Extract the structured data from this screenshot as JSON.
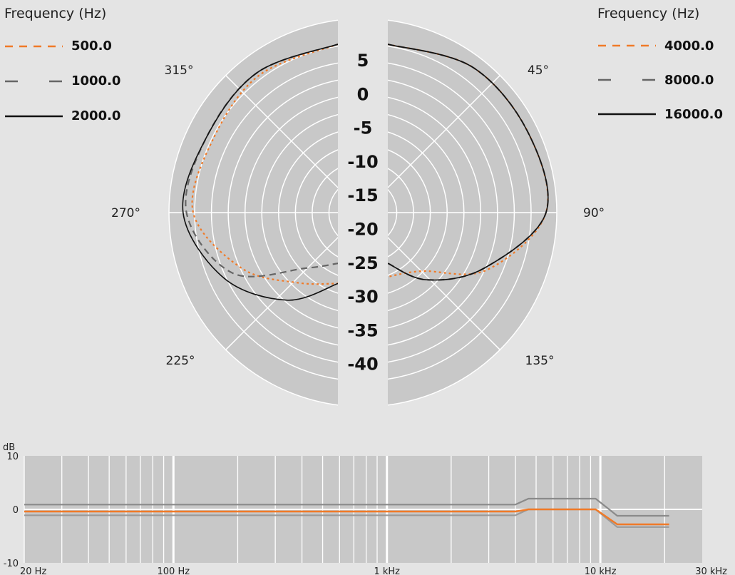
{
  "chart_data": [
    {
      "type": "polar",
      "radial_ticks": [
        "5",
        "0",
        "-5",
        "-10",
        "-15",
        "-20",
        "-25",
        "-30",
        "-35",
        "-40"
      ],
      "radial_range": [
        -40,
        5
      ],
      "angle_labels": [
        "45°",
        "90°",
        "135°",
        "225°",
        "270°",
        "315°"
      ],
      "legends": [
        {
          "title": "Frequency (Hz)",
          "placement": "top-left",
          "entries": [
            {
              "label": "500.0",
              "color": "#f07a28",
              "style": "dotted"
            },
            {
              "label": "1000.0",
              "color": "#666666",
              "style": "dashed"
            },
            {
              "label": "2000.0",
              "color": "#111111",
              "style": "solid"
            }
          ]
        },
        {
          "title": "Frequency (Hz)",
          "placement": "top-right",
          "entries": [
            {
              "label": "4000.0",
              "color": "#f07a28",
              "style": "dotted"
            },
            {
              "label": "8000.0",
              "color": "#666666",
              "style": "dashed"
            },
            {
              "label": "16000.0",
              "color": "#111111",
              "style": "solid"
            }
          ]
        }
      ],
      "series": [
        {
          "name": "500.0",
          "side": "left",
          "angles": [
            0,
            30,
            60,
            90,
            120,
            150,
            180
          ],
          "values": [
            5,
            2,
            -2,
            -2,
            -12,
            -21,
            -24
          ]
        },
        {
          "name": "1000.0",
          "side": "left",
          "angles": [
            0,
            30,
            60,
            90,
            120,
            150,
            180
          ],
          "values": [
            5,
            3,
            0,
            0,
            -9,
            -26,
            -30
          ]
        },
        {
          "name": "2000.0",
          "side": "left",
          "angles": [
            0,
            30,
            60,
            90,
            120,
            150,
            180
          ],
          "values": [
            5,
            3,
            0,
            1,
            -6,
            -15,
            -24
          ]
        },
        {
          "name": "4000.0",
          "side": "right",
          "angles": [
            0,
            30,
            60,
            90,
            120,
            150,
            180
          ],
          "values": [
            5,
            5,
            3,
            2,
            -11,
            -25,
            -26
          ]
        },
        {
          "name": "8000.0",
          "side": "right",
          "angles": [
            0,
            30,
            60,
            90,
            120,
            150,
            180
          ],
          "values": [
            5,
            5,
            3,
            2,
            -12,
            -22,
            -30
          ]
        },
        {
          "name": "16000.0",
          "side": "right",
          "angles": [
            0,
            30,
            60,
            90,
            120,
            150,
            180
          ],
          "values": [
            5,
            5,
            3,
            2,
            -12,
            -22,
            -30
          ]
        }
      ]
    },
    {
      "type": "line",
      "ylabel": "dB",
      "ylim": [
        -10,
        10
      ],
      "y_ticks": [
        "10",
        "0",
        "-10"
      ],
      "x_scale": "log",
      "xlim": [
        20,
        30000
      ],
      "x_ticks": [
        {
          "value": 20,
          "label": "20 Hz"
        },
        {
          "value": 100,
          "label": "100 Hz"
        },
        {
          "value": 1000,
          "label": "1 kHz"
        },
        {
          "value": 10000,
          "label": "10 kHz"
        },
        {
          "value": 30000,
          "label": "30 kHz"
        }
      ],
      "series": [
        {
          "color": "#8a8a8a",
          "x": [
            20,
            4000,
            4600,
            9500,
            12000,
            21000
          ],
          "y": [
            0.9,
            0.9,
            2.0,
            2.0,
            -1.2,
            -1.2
          ]
        },
        {
          "color": "#9a9a9a",
          "x": [
            20,
            4000,
            4600,
            9500,
            12000,
            21000
          ],
          "y": [
            -1.1,
            -1.1,
            0.0,
            0.0,
            -3.3,
            -3.3
          ]
        },
        {
          "color": "#f07a28",
          "x": [
            20,
            4000,
            4600,
            9500,
            12000,
            21000
          ],
          "y": [
            -0.4,
            -0.4,
            0.0,
            0.0,
            -2.8,
            -2.8
          ]
        }
      ]
    }
  ]
}
